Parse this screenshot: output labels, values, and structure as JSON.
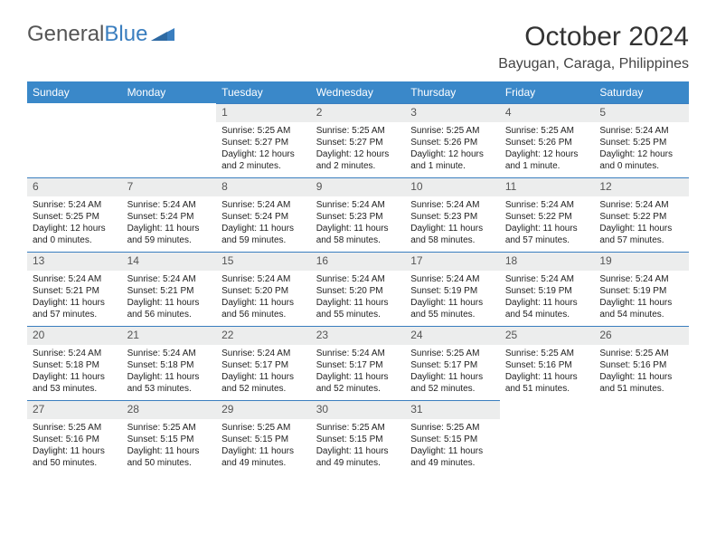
{
  "logo": {
    "part1": "General",
    "part2": "Blue"
  },
  "title": "October 2024",
  "location": "Bayugan, Caraga, Philippines",
  "colors": {
    "header_bg": "#3a88c9",
    "header_text": "#ffffff",
    "daynum_bg": "#eceded",
    "daynum_border": "#3a7ebf",
    "page_bg": "#ffffff",
    "text": "#222222",
    "logo_gray": "#555555",
    "logo_blue": "#3a7ebf"
  },
  "days_of_week": [
    "Sunday",
    "Monday",
    "Tuesday",
    "Wednesday",
    "Thursday",
    "Friday",
    "Saturday"
  ],
  "weeks": [
    [
      null,
      null,
      {
        "n": "1",
        "sr": "Sunrise: 5:25 AM",
        "ss": "Sunset: 5:27 PM",
        "dl": "Daylight: 12 hours and 2 minutes."
      },
      {
        "n": "2",
        "sr": "Sunrise: 5:25 AM",
        "ss": "Sunset: 5:27 PM",
        "dl": "Daylight: 12 hours and 2 minutes."
      },
      {
        "n": "3",
        "sr": "Sunrise: 5:25 AM",
        "ss": "Sunset: 5:26 PM",
        "dl": "Daylight: 12 hours and 1 minute."
      },
      {
        "n": "4",
        "sr": "Sunrise: 5:25 AM",
        "ss": "Sunset: 5:26 PM",
        "dl": "Daylight: 12 hours and 1 minute."
      },
      {
        "n": "5",
        "sr": "Sunrise: 5:24 AM",
        "ss": "Sunset: 5:25 PM",
        "dl": "Daylight: 12 hours and 0 minutes."
      }
    ],
    [
      {
        "n": "6",
        "sr": "Sunrise: 5:24 AM",
        "ss": "Sunset: 5:25 PM",
        "dl": "Daylight: 12 hours and 0 minutes."
      },
      {
        "n": "7",
        "sr": "Sunrise: 5:24 AM",
        "ss": "Sunset: 5:24 PM",
        "dl": "Daylight: 11 hours and 59 minutes."
      },
      {
        "n": "8",
        "sr": "Sunrise: 5:24 AM",
        "ss": "Sunset: 5:24 PM",
        "dl": "Daylight: 11 hours and 59 minutes."
      },
      {
        "n": "9",
        "sr": "Sunrise: 5:24 AM",
        "ss": "Sunset: 5:23 PM",
        "dl": "Daylight: 11 hours and 58 minutes."
      },
      {
        "n": "10",
        "sr": "Sunrise: 5:24 AM",
        "ss": "Sunset: 5:23 PM",
        "dl": "Daylight: 11 hours and 58 minutes."
      },
      {
        "n": "11",
        "sr": "Sunrise: 5:24 AM",
        "ss": "Sunset: 5:22 PM",
        "dl": "Daylight: 11 hours and 57 minutes."
      },
      {
        "n": "12",
        "sr": "Sunrise: 5:24 AM",
        "ss": "Sunset: 5:22 PM",
        "dl": "Daylight: 11 hours and 57 minutes."
      }
    ],
    [
      {
        "n": "13",
        "sr": "Sunrise: 5:24 AM",
        "ss": "Sunset: 5:21 PM",
        "dl": "Daylight: 11 hours and 57 minutes."
      },
      {
        "n": "14",
        "sr": "Sunrise: 5:24 AM",
        "ss": "Sunset: 5:21 PM",
        "dl": "Daylight: 11 hours and 56 minutes."
      },
      {
        "n": "15",
        "sr": "Sunrise: 5:24 AM",
        "ss": "Sunset: 5:20 PM",
        "dl": "Daylight: 11 hours and 56 minutes."
      },
      {
        "n": "16",
        "sr": "Sunrise: 5:24 AM",
        "ss": "Sunset: 5:20 PM",
        "dl": "Daylight: 11 hours and 55 minutes."
      },
      {
        "n": "17",
        "sr": "Sunrise: 5:24 AM",
        "ss": "Sunset: 5:19 PM",
        "dl": "Daylight: 11 hours and 55 minutes."
      },
      {
        "n": "18",
        "sr": "Sunrise: 5:24 AM",
        "ss": "Sunset: 5:19 PM",
        "dl": "Daylight: 11 hours and 54 minutes."
      },
      {
        "n": "19",
        "sr": "Sunrise: 5:24 AM",
        "ss": "Sunset: 5:19 PM",
        "dl": "Daylight: 11 hours and 54 minutes."
      }
    ],
    [
      {
        "n": "20",
        "sr": "Sunrise: 5:24 AM",
        "ss": "Sunset: 5:18 PM",
        "dl": "Daylight: 11 hours and 53 minutes."
      },
      {
        "n": "21",
        "sr": "Sunrise: 5:24 AM",
        "ss": "Sunset: 5:18 PM",
        "dl": "Daylight: 11 hours and 53 minutes."
      },
      {
        "n": "22",
        "sr": "Sunrise: 5:24 AM",
        "ss": "Sunset: 5:17 PM",
        "dl": "Daylight: 11 hours and 52 minutes."
      },
      {
        "n": "23",
        "sr": "Sunrise: 5:24 AM",
        "ss": "Sunset: 5:17 PM",
        "dl": "Daylight: 11 hours and 52 minutes."
      },
      {
        "n": "24",
        "sr": "Sunrise: 5:25 AM",
        "ss": "Sunset: 5:17 PM",
        "dl": "Daylight: 11 hours and 52 minutes."
      },
      {
        "n": "25",
        "sr": "Sunrise: 5:25 AM",
        "ss": "Sunset: 5:16 PM",
        "dl": "Daylight: 11 hours and 51 minutes."
      },
      {
        "n": "26",
        "sr": "Sunrise: 5:25 AM",
        "ss": "Sunset: 5:16 PM",
        "dl": "Daylight: 11 hours and 51 minutes."
      }
    ],
    [
      {
        "n": "27",
        "sr": "Sunrise: 5:25 AM",
        "ss": "Sunset: 5:16 PM",
        "dl": "Daylight: 11 hours and 50 minutes."
      },
      {
        "n": "28",
        "sr": "Sunrise: 5:25 AM",
        "ss": "Sunset: 5:15 PM",
        "dl": "Daylight: 11 hours and 50 minutes."
      },
      {
        "n": "29",
        "sr": "Sunrise: 5:25 AM",
        "ss": "Sunset: 5:15 PM",
        "dl": "Daylight: 11 hours and 49 minutes."
      },
      {
        "n": "30",
        "sr": "Sunrise: 5:25 AM",
        "ss": "Sunset: 5:15 PM",
        "dl": "Daylight: 11 hours and 49 minutes."
      },
      {
        "n": "31",
        "sr": "Sunrise: 5:25 AM",
        "ss": "Sunset: 5:15 PM",
        "dl": "Daylight: 11 hours and 49 minutes."
      },
      null,
      null
    ]
  ]
}
